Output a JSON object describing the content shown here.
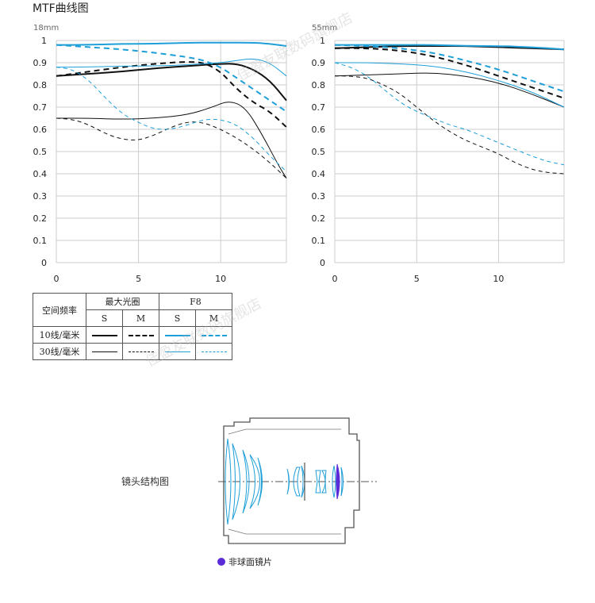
{
  "title": "MTF曲线图",
  "watermark": "佳盈友联数码旗舰店",
  "colors": {
    "max_aperture": "#111111",
    "f8": "#1e9fd8",
    "grid": "#cccccc",
    "aspherical": "#5b2bd8"
  },
  "chart_data": [
    {
      "type": "line",
      "focal_label": "18mm",
      "xlim": [
        0,
        14
      ],
      "ylim": [
        0,
        1
      ],
      "x_ticks": [
        "0",
        "5",
        "10"
      ],
      "y_ticks": [
        "0",
        "0.1",
        "0.2",
        "0.3",
        "0.4",
        "0.5",
        "0.6",
        "0.7",
        "0.8",
        "0.9",
        "1"
      ],
      "grid": true,
      "series": [
        {
          "name": "10线/毫米 最大光圈 S",
          "width": 2,
          "dash": false,
          "color": "max_aperture",
          "x": [
            0,
            2,
            4,
            6,
            8,
            10,
            11,
            12,
            13,
            14
          ],
          "y": [
            0.84,
            0.85,
            0.86,
            0.875,
            0.885,
            0.895,
            0.895,
            0.87,
            0.82,
            0.73
          ]
        },
        {
          "name": "10线/毫米 最大光圈 M",
          "width": 2,
          "dash": true,
          "color": "max_aperture",
          "x": [
            0,
            2,
            4,
            6,
            8,
            9,
            10,
            11,
            12,
            13,
            14
          ],
          "y": [
            0.84,
            0.86,
            0.88,
            0.895,
            0.905,
            0.9,
            0.86,
            0.78,
            0.72,
            0.68,
            0.61
          ]
        },
        {
          "name": "30线/毫米 最大光圈 S",
          "width": 1,
          "dash": false,
          "color": "max_aperture",
          "x": [
            0,
            2,
            4,
            6,
            8,
            9.5,
            10.5,
            11.5,
            12.5,
            13.5,
            14
          ],
          "y": [
            0.65,
            0.65,
            0.645,
            0.65,
            0.665,
            0.7,
            0.73,
            0.7,
            0.58,
            0.44,
            0.38
          ]
        },
        {
          "name": "30线/毫米 最大光圈 M",
          "width": 1,
          "dash": true,
          "color": "max_aperture",
          "x": [
            0,
            1,
            2,
            3,
            4,
            5,
            6,
            7,
            8,
            9,
            10,
            11,
            12,
            13,
            14
          ],
          "y": [
            0.65,
            0.645,
            0.62,
            0.58,
            0.555,
            0.55,
            0.575,
            0.61,
            0.635,
            0.63,
            0.6,
            0.56,
            0.51,
            0.45,
            0.38
          ]
        },
        {
          "name": "10线/毫米 F8 S",
          "width": 2,
          "dash": false,
          "color": "f8",
          "x": [
            0,
            2,
            4,
            6,
            8,
            10,
            12,
            13,
            14
          ],
          "y": [
            0.98,
            0.98,
            0.985,
            0.985,
            0.99,
            0.99,
            0.99,
            0.985,
            0.975
          ]
        },
        {
          "name": "10线/毫米 F8 M",
          "width": 2,
          "dash": true,
          "color": "f8",
          "x": [
            0,
            2,
            4,
            6,
            8,
            9,
            10,
            11,
            12,
            13,
            14
          ],
          "y": [
            0.98,
            0.97,
            0.96,
            0.945,
            0.925,
            0.91,
            0.88,
            0.83,
            0.78,
            0.73,
            0.68
          ]
        },
        {
          "name": "30线/毫米 F8 S",
          "width": 1,
          "dash": false,
          "color": "f8",
          "x": [
            0,
            2,
            4,
            6,
            8,
            10,
            11,
            12,
            13,
            14
          ],
          "y": [
            0.88,
            0.88,
            0.885,
            0.885,
            0.89,
            0.9,
            0.91,
            0.92,
            0.9,
            0.84
          ]
        },
        {
          "name": "30线/毫米 F8 M",
          "width": 1,
          "dash": true,
          "color": "f8",
          "x": [
            0,
            1,
            2,
            3,
            4,
            5,
            6,
            7,
            8,
            9,
            10,
            11,
            12,
            13,
            14
          ],
          "y": [
            0.88,
            0.87,
            0.82,
            0.74,
            0.67,
            0.63,
            0.6,
            0.6,
            0.62,
            0.645,
            0.645,
            0.62,
            0.56,
            0.48,
            0.41
          ]
        }
      ]
    },
    {
      "type": "line",
      "focal_label": "55mm",
      "xlim": [
        0,
        14
      ],
      "ylim": [
        0,
        1
      ],
      "x_ticks": [
        "0",
        "5",
        "10"
      ],
      "y_ticks": [
        "0",
        "0.1",
        "0.2",
        "0.3",
        "0.4",
        "0.5",
        "0.6",
        "0.7",
        "0.8",
        "0.9",
        "1"
      ],
      "grid": true,
      "series": [
        {
          "name": "10线/毫米 最大光圈 S",
          "width": 2,
          "dash": false,
          "color": "max_aperture",
          "x": [
            0,
            2,
            4,
            6,
            8,
            10,
            12,
            14
          ],
          "y": [
            0.965,
            0.97,
            0.975,
            0.975,
            0.975,
            0.97,
            0.965,
            0.96
          ]
        },
        {
          "name": "10线/毫米 最大光圈 M",
          "width": 2,
          "dash": true,
          "color": "max_aperture",
          "x": [
            0,
            2,
            4,
            6,
            8,
            10,
            12,
            14
          ],
          "y": [
            0.965,
            0.965,
            0.955,
            0.93,
            0.89,
            0.84,
            0.79,
            0.74
          ]
        },
        {
          "name": "30线/毫米 最大光圈 S",
          "width": 1,
          "dash": false,
          "color": "max_aperture",
          "x": [
            0,
            2,
            4,
            6,
            8,
            10,
            12,
            14
          ],
          "y": [
            0.84,
            0.845,
            0.85,
            0.855,
            0.84,
            0.81,
            0.76,
            0.7
          ]
        },
        {
          "name": "30线/毫米 最大光圈 M",
          "width": 1,
          "dash": true,
          "color": "max_aperture",
          "x": [
            0,
            1,
            2,
            3,
            4,
            5,
            6,
            7,
            8,
            9,
            10,
            11,
            12,
            13,
            14
          ],
          "y": [
            0.84,
            0.84,
            0.83,
            0.8,
            0.76,
            0.7,
            0.64,
            0.59,
            0.55,
            0.52,
            0.49,
            0.45,
            0.42,
            0.405,
            0.4
          ]
        },
        {
          "name": "10线/毫米 F8 S",
          "width": 2,
          "dash": false,
          "color": "f8",
          "x": [
            0,
            2,
            4,
            6,
            8,
            10,
            12,
            14
          ],
          "y": [
            0.98,
            0.98,
            0.98,
            0.98,
            0.975,
            0.975,
            0.97,
            0.96
          ]
        },
        {
          "name": "10线/毫米 F8 M",
          "width": 2,
          "dash": true,
          "color": "f8",
          "x": [
            0,
            2,
            4,
            6,
            8,
            10,
            12,
            14
          ],
          "y": [
            0.98,
            0.975,
            0.965,
            0.945,
            0.91,
            0.87,
            0.82,
            0.77
          ]
        },
        {
          "name": "30线/毫米 F8 S",
          "width": 1,
          "dash": false,
          "color": "f8",
          "x": [
            0,
            2,
            4,
            6,
            8,
            10,
            12,
            14
          ],
          "y": [
            0.9,
            0.9,
            0.895,
            0.885,
            0.86,
            0.82,
            0.77,
            0.7
          ]
        },
        {
          "name": "30线/毫米 F8 M",
          "width": 1,
          "dash": true,
          "color": "f8",
          "x": [
            0,
            1,
            2,
            3,
            4,
            5,
            6,
            7,
            8,
            9,
            10,
            11,
            12,
            13,
            14
          ],
          "y": [
            0.9,
            0.88,
            0.84,
            0.78,
            0.72,
            0.68,
            0.65,
            0.62,
            0.6,
            0.57,
            0.54,
            0.51,
            0.48,
            0.455,
            0.44
          ]
        }
      ]
    }
  ],
  "legend": {
    "header_freq": "空间频率",
    "header_max": "最大光圈",
    "header_f8": "F8",
    "s": "S",
    "m": "M",
    "row1": "10线/毫米",
    "row2": "30线/毫米"
  },
  "lens": {
    "label": "镜头结构图",
    "aspherical": "非球面镜片"
  }
}
